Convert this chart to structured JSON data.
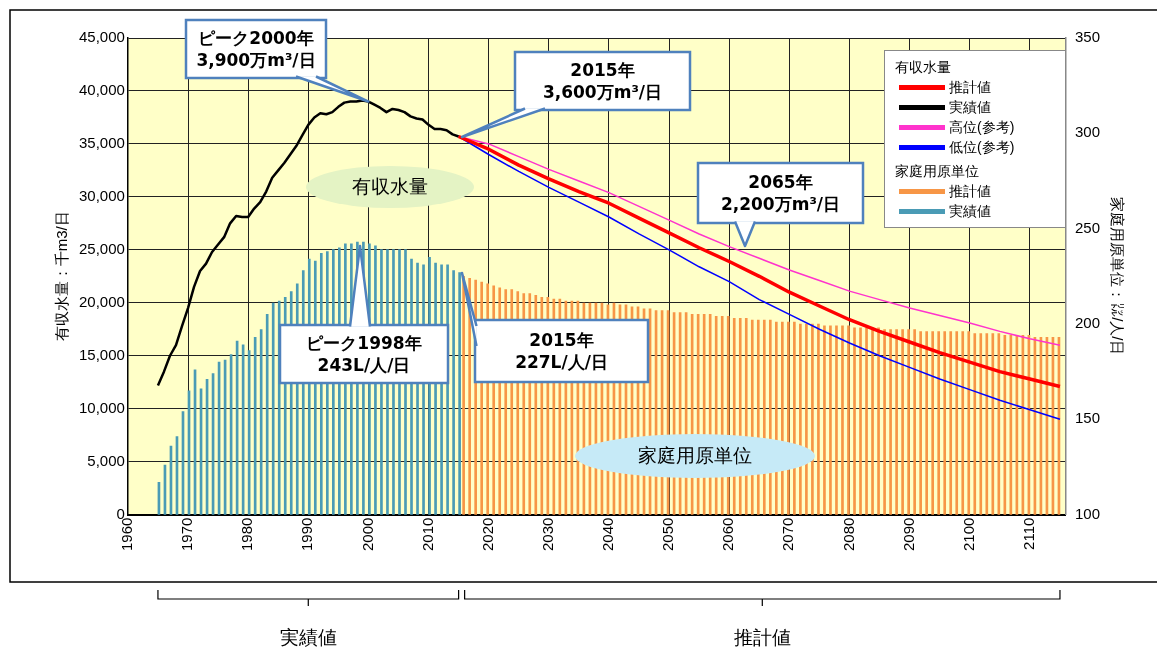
{
  "chart_data": {
    "type": "line",
    "ylabel": "有収水量：千m3/日",
    "y2label": "家庭用原単位：㍑/人/日",
    "legend_title": "有収水量",
    "xlim": [
      1960,
      2116
    ],
    "xticks": [
      1960,
      1970,
      1980,
      1990,
      2000,
      2010,
      2020,
      2030,
      2040,
      2050,
      2060,
      2070,
      2080,
      2090,
      2100,
      2110
    ],
    "ylim": [
      0,
      45000
    ],
    "yticks": [
      0,
      {
        "value": 5000,
        "label": "5,000"
      },
      {
        "value": 10000,
        "label": "10,000"
      },
      {
        "value": 15000,
        "label": "15,000"
      },
      {
        "value": 20000,
        "label": "20,000"
      },
      {
        "value": 25000,
        "label": "25,000"
      },
      {
        "value": 30000,
        "label": "30,000"
      },
      {
        "value": 35000,
        "label": "35,000"
      },
      {
        "value": 40000,
        "label": "40,000"
      },
      {
        "value": 45000,
        "label": "45,000"
      }
    ],
    "y2lim": [
      100,
      350
    ],
    "y2ticks": [
      100,
      150,
      200,
      250,
      300,
      350
    ],
    "grid": true,
    "legend": "top right",
    "series": [
      {
        "name": "推計値",
        "color": "#ff0000",
        "x": [
          2015,
          2020,
          2025,
          2030,
          2035,
          2040,
          2045,
          2050,
          2055,
          2060,
          2065,
          2070,
          2075,
          2080,
          2085,
          2090,
          2095,
          2100,
          2105,
          2110,
          2115
        ],
        "values": [
          35700,
          34500,
          33000,
          31700,
          30500,
          29400,
          28000,
          26600,
          25200,
          23900,
          22500,
          21000,
          19700,
          18400,
          17300,
          16300,
          15300,
          14400,
          13500,
          12800,
          12100
        ]
      },
      {
        "name": "実績値",
        "color": "#000000",
        "x": [
          1965,
          1966,
          1967,
          1968,
          1969,
          1970,
          1971,
          1972,
          1973,
          1974,
          1975,
          1976,
          1977,
          1978,
          1979,
          1980,
          1981,
          1982,
          1983,
          1984,
          1985,
          1986,
          1987,
          1988,
          1989,
          1990,
          1991,
          1992,
          1993,
          1994,
          1995,
          1996,
          1997,
          1998,
          1999,
          2000,
          2001,
          2002,
          2003,
          2004,
          2005,
          2006,
          2007,
          2008,
          2009,
          2010,
          2011,
          2012,
          2013,
          2014,
          2015
        ],
        "values": [
          12200,
          13500,
          15000,
          16000,
          17800,
          19500,
          21500,
          23000,
          23700,
          24800,
          25500,
          26200,
          27500,
          28200,
          28100,
          28100,
          28900,
          29500,
          30500,
          31800,
          32500,
          33200,
          34000,
          34800,
          35800,
          36800,
          37500,
          37900,
          37800,
          38000,
          38500,
          38900,
          39000,
          39000,
          39100,
          39000,
          38700,
          38400,
          38000,
          38300,
          38200,
          38000,
          37600,
          37400,
          37300,
          36800,
          36400,
          36400,
          36300,
          35900,
          35700
        ]
      },
      {
        "name": "高位(参考)",
        "color": "#ff33cc",
        "x": [
          2015,
          2020,
          2025,
          2030,
          2035,
          2040,
          2045,
          2050,
          2055,
          2060,
          2065,
          2070,
          2075,
          2080,
          2085,
          2090,
          2095,
          2100,
          2105,
          2110,
          2115
        ],
        "values": [
          35700,
          35000,
          33800,
          32600,
          31500,
          30400,
          29100,
          27800,
          26500,
          25300,
          24200,
          23100,
          22100,
          21100,
          20300,
          19500,
          18800,
          18100,
          17300,
          16600,
          16000
        ]
      },
      {
        "name": "低位(参考)",
        "color": "#0000ff",
        "x": [
          2015,
          2020,
          2025,
          2030,
          2035,
          2040,
          2045,
          2050,
          2055,
          2060,
          2065,
          2070,
          2075,
          2080,
          2085,
          2090,
          2095,
          2100,
          2105,
          2110,
          2115
        ],
        "values": [
          35700,
          34000,
          32400,
          30900,
          29500,
          28100,
          26500,
          25000,
          23400,
          22000,
          20300,
          18900,
          17500,
          16200,
          15000,
          13900,
          12800,
          11800,
          10800,
          9900,
          9000
        ]
      },
      {
        "name": "推計値",
        "type": "bar",
        "axis": "y2",
        "color": "#f79646",
        "x": [
          2016,
          2017,
          2018,
          2019,
          2020,
          2021,
          2022,
          2023,
          2024,
          2025,
          2026,
          2027,
          2028,
          2029,
          2030,
          2031,
          2032,
          2033,
          2034,
          2035,
          2036,
          2037,
          2038,
          2039,
          2040,
          2041,
          2042,
          2043,
          2044,
          2045,
          2046,
          2047,
          2048,
          2049,
          2050,
          2051,
          2052,
          2053,
          2054,
          2055,
          2056,
          2057,
          2058,
          2059,
          2060,
          2061,
          2062,
          2063,
          2064,
          2065,
          2066,
          2067,
          2068,
          2069,
          2070,
          2071,
          2072,
          2073,
          2074,
          2075,
          2076,
          2077,
          2078,
          2079,
          2080,
          2081,
          2082,
          2083,
          2084,
          2085,
          2086,
          2087,
          2088,
          2089,
          2090,
          2091,
          2092,
          2093,
          2094,
          2095,
          2096,
          2097,
          2098,
          2099,
          2100,
          2101,
          2102,
          2103,
          2104,
          2105,
          2106,
          2107,
          2108,
          2109,
          2110,
          2111,
          2112,
          2113,
          2114,
          2115
        ],
        "values": [
          225,
          224,
          223,
          222,
          221,
          220,
          219,
          218,
          218,
          217,
          216,
          216,
          215,
          214,
          214,
          213,
          213,
          212,
          212,
          212,
          211,
          211,
          211,
          211,
          210,
          211,
          210,
          210,
          209,
          209,
          208,
          208,
          207,
          207,
          207,
          206,
          206,
          206,
          205,
          205,
          205,
          205,
          204,
          204,
          204,
          203,
          203,
          203,
          202,
          202,
          202,
          202,
          201,
          201,
          201,
          201,
          200,
          200,
          200,
          200,
          199,
          199,
          199,
          199,
          199,
          198,
          198,
          198,
          198,
          198,
          197,
          197,
          197,
          197,
          197,
          197,
          196,
          196,
          196,
          196,
          196,
          196,
          196,
          196,
          196,
          195,
          195,
          195,
          195,
          195,
          194,
          194,
          194,
          194,
          194,
          193,
          193,
          193,
          193,
          193
        ]
      },
      {
        "name": "実績値",
        "type": "bar",
        "axis": "y2",
        "color": "#4a9bb5",
        "x": [
          1965,
          1966,
          1967,
          1968,
          1969,
          1970,
          1971,
          1972,
          1973,
          1974,
          1975,
          1976,
          1977,
          1978,
          1979,
          1980,
          1981,
          1982,
          1983,
          1984,
          1985,
          1986,
          1987,
          1988,
          1989,
          1990,
          1991,
          1992,
          1993,
          1994,
          1995,
          1996,
          1997,
          1998,
          1999,
          2000,
          2001,
          2002,
          2003,
          2004,
          2005,
          2006,
          2007,
          2008,
          2009,
          2010,
          2011,
          2012,
          2013,
          2014,
          2015
        ],
        "values": [
          117,
          126,
          136,
          141,
          154,
          165,
          176,
          166,
          171,
          174,
          180,
          181,
          184,
          191,
          189,
          186,
          193,
          197,
          205,
          211,
          212,
          214,
          217,
          221,
          228,
          234,
          233,
          237,
          238,
          239,
          240,
          242,
          242,
          243,
          243,
          242,
          241,
          239,
          239,
          239,
          239,
          239,
          234,
          232,
          231,
          235,
          232,
          231,
          231,
          228,
          227
        ]
      }
    ],
    "annotations": [
      {
        "text": "ピーク2000年\n3,900万m³/日",
        "x": 2000,
        "y": 39000
      },
      "2015年\n3,600万m³/日",
      "2065年\n2,200万m³/日",
      "ピーク1998年\n243L/人/日",
      "2015年\n227L/人/日",
      "有収水量",
      "家庭用原単位",
      "実績値",
      "推計値",
      "家庭用原単位"
    ]
  }
}
